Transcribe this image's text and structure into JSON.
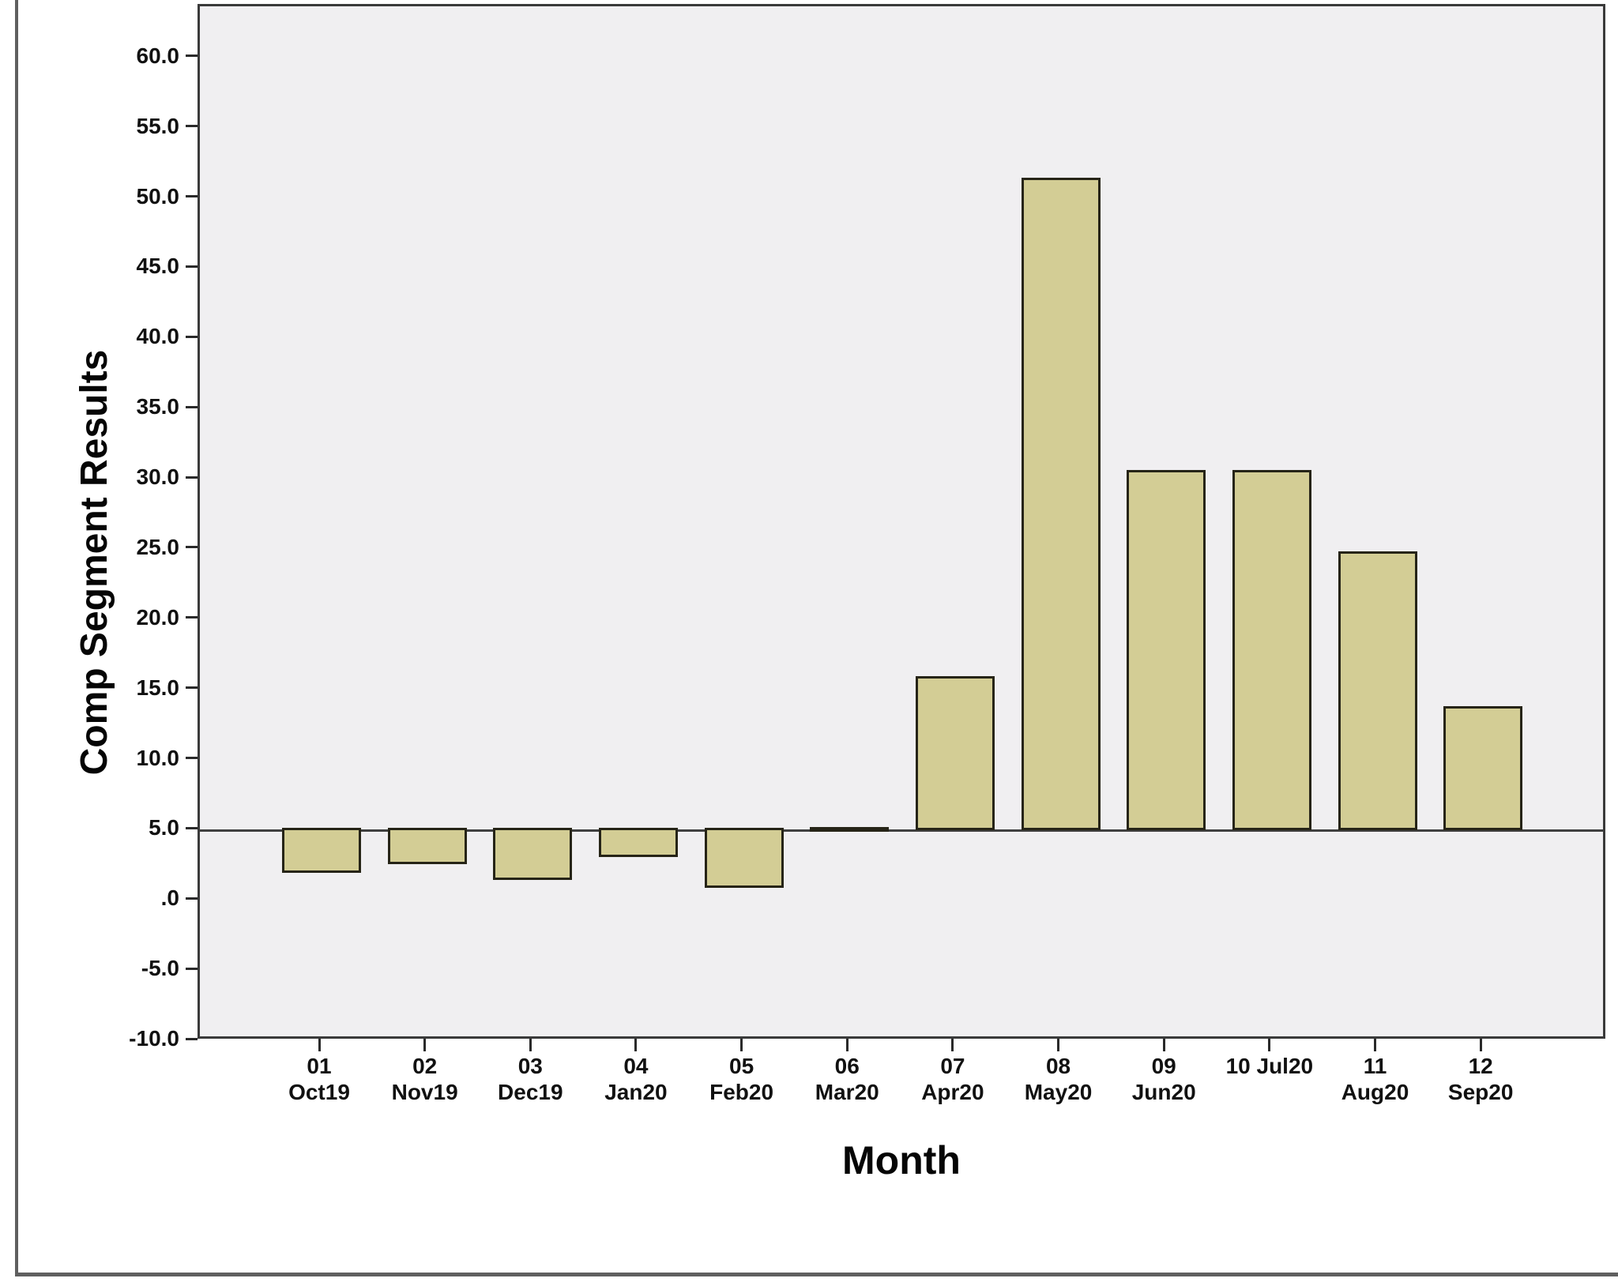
{
  "chart_data": {
    "type": "bar",
    "title": "",
    "xlabel": "Month",
    "ylabel": "Comp Segment Results",
    "categories": [
      "01 Oct19",
      "02 Nov19",
      "03 Dec19",
      "04 Jan20",
      "05 Feb20",
      "06 Mar20",
      "07 Apr20",
      "08 May20",
      "09 Jun20",
      "10 Jul20",
      "11 Aug20",
      "12 Sep20"
    ],
    "category_label_lines": [
      [
        "01",
        "Oct19"
      ],
      [
        "02",
        "Nov19"
      ],
      [
        "03",
        "Dec19"
      ],
      [
        "04",
        "Jan20"
      ],
      [
        "05",
        "Feb20"
      ],
      [
        "06",
        "Mar20"
      ],
      [
        "07",
        "Apr20"
      ],
      [
        "08",
        "May20"
      ],
      [
        "09",
        "Jun20"
      ],
      [
        "10 Jul20"
      ],
      [
        "11",
        "Aug20"
      ],
      [
        "12",
        "Sep20"
      ]
    ],
    "values": [
      2.0,
      2.6,
      1.5,
      3.1,
      0.9,
      5.1,
      15.8,
      51.3,
      30.5,
      30.5,
      24.7,
      13.7
    ],
    "baseline": 5.0,
    "ylim": [
      -10.0,
      63.7
    ],
    "yticks": [
      {
        "v": 60,
        "label": "60.0"
      },
      {
        "v": 55,
        "label": "55.0"
      },
      {
        "v": 50,
        "label": "50.0"
      },
      {
        "v": 45,
        "label": "45.0"
      },
      {
        "v": 40,
        "label": "40.0"
      },
      {
        "v": 35,
        "label": "35.0"
      },
      {
        "v": 30,
        "label": "30.0"
      },
      {
        "v": 25,
        "label": "25.0"
      },
      {
        "v": 20,
        "label": "20.0"
      },
      {
        "v": 15,
        "label": "15.0"
      },
      {
        "v": 10,
        "label": "10.0"
      },
      {
        "v": 5,
        "label": "5.0"
      },
      {
        "v": 0,
        "label": ".0"
      },
      {
        "v": -5,
        "label": "-5.0"
      },
      {
        "v": -10,
        "label": "-10.0"
      }
    ],
    "grid": false,
    "legend": "none",
    "colors": {
      "bar_fill": "#d3cd95",
      "bar_border": "#262417",
      "plot_background": "#f0eff1",
      "axis_frame": "#3a3a3a",
      "reference_line": "#404040",
      "tick_text": "#111111",
      "outer_border": "#5f5f5f"
    }
  }
}
